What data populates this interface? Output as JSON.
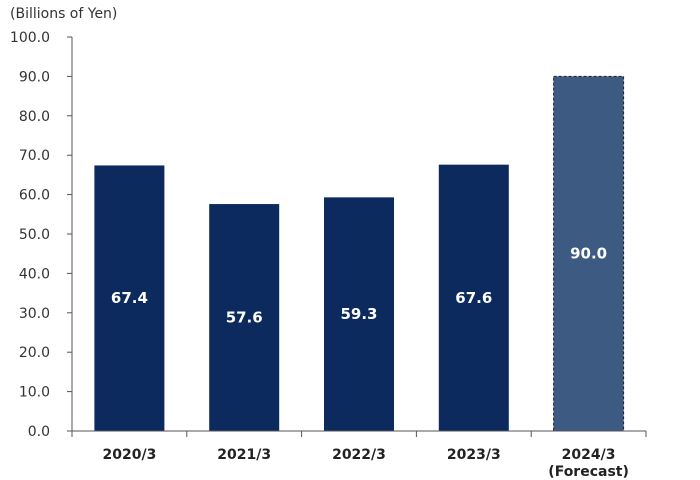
{
  "chart_data": {
    "type": "bar",
    "ylabel": "(Billions of Yen)",
    "categories": [
      {
        "label": "2020/3",
        "sub": ""
      },
      {
        "label": "2021/3",
        "sub": ""
      },
      {
        "label": "2022/3",
        "sub": ""
      },
      {
        "label": "2023/3",
        "sub": ""
      },
      {
        "label": "2024/3",
        "sub": "(Forecast)"
      }
    ],
    "values": [
      67.4,
      57.6,
      59.3,
      67.6,
      90.0
    ],
    "data_labels": [
      "67.4",
      "57.6",
      "59.3",
      "67.6",
      "90.0"
    ],
    "forecast": [
      false,
      false,
      false,
      false,
      true
    ],
    "ylim": [
      0,
      100
    ],
    "yticks": [
      "0.0",
      "10.0",
      "20.0",
      "30.0",
      "40.0",
      "50.0",
      "60.0",
      "70.0",
      "80.0",
      "90.0",
      "100.0"
    ],
    "grid": false,
    "colors": {
      "actual": "#0d2a5e",
      "forecast": "#3d5a82",
      "axis": "#555555"
    }
  }
}
